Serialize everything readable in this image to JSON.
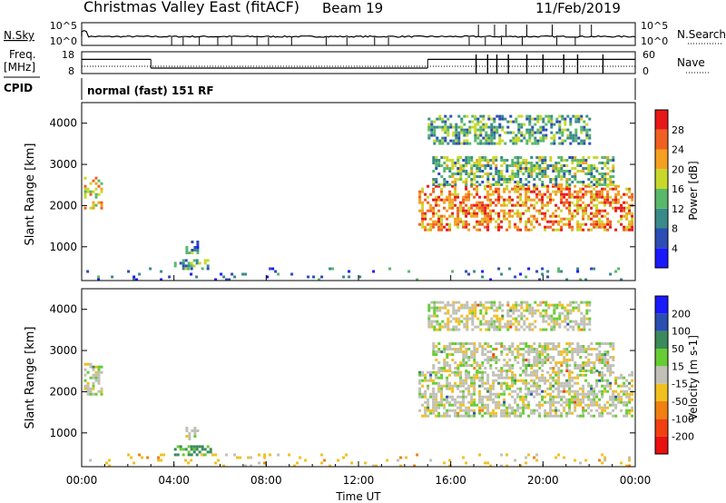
{
  "header": {
    "title": "Christmas Valley East (fitACF)",
    "beam": "Beam 19",
    "date": "11/Feb/2019"
  },
  "nsky_panel": {
    "left_label": "N.Sky",
    "right_label": "N.Search",
    "left_ticks": [
      "10^5",
      "10^0"
    ],
    "right_ticks": [
      "10^5",
      "10^0"
    ],
    "right_legend_style": "dotted"
  },
  "freq_panel": {
    "left_label_top": "Freq.",
    "left_label_unit": "[MHz]",
    "left_ticks": [
      "18",
      "8"
    ],
    "right_label": "Nave",
    "right_ticks": [
      "60",
      "0"
    ],
    "right_legend_style": "dotted",
    "freq_levels_mhz": [
      {
        "from_h": 0,
        "to_h": 3,
        "value": 14.5
      },
      {
        "from_h": 3,
        "to_h": 15,
        "value": 10.5
      },
      {
        "from_h": 15,
        "to_h": 24,
        "value": 14.5
      }
    ]
  },
  "cpid_panel": {
    "label": "CPID",
    "text": "normal (fast) 151 RF"
  },
  "chart_data": [
    {
      "type": "heatmap",
      "name": "power",
      "ylabel": "Slant Range [km]",
      "yticks": [
        "1000",
        "2000",
        "3000",
        "4000"
      ],
      "ylim": [
        180,
        4500
      ],
      "xlim": [
        0,
        24
      ],
      "colorbar": {
        "label": "Power [dB]",
        "ticks": [
          "4",
          "8",
          "12",
          "16",
          "20",
          "24",
          "28"
        ],
        "range": [
          0,
          32
        ],
        "colors": [
          "#1a1aff",
          "#2b4db5",
          "#3a8a8a",
          "#59b86a",
          "#c8d82a",
          "#f5a020",
          "#f06020",
          "#e81818"
        ]
      },
      "regions": [
        {
          "x": [
            0.1,
            0.9
          ],
          "y": [
            1950,
            2700
          ],
          "value": 20
        },
        {
          "x": [
            4.5,
            5.0
          ],
          "y": [
            850,
            1150
          ],
          "value": 10
        },
        {
          "x": [
            4.0,
            5.6
          ],
          "y": [
            450,
            700
          ],
          "value": 12
        },
        {
          "x": [
            14.6,
            23.9
          ],
          "y": [
            1400,
            2500
          ],
          "value": 24
        },
        {
          "x": [
            15.2,
            23.0
          ],
          "y": [
            2500,
            3200
          ],
          "value": 14
        },
        {
          "x": [
            15.0,
            22.0
          ],
          "y": [
            3500,
            4200
          ],
          "value": 12
        },
        {
          "x": [
            0.2,
            23.9
          ],
          "y": [
            180,
            500
          ],
          "value": 8
        }
      ]
    },
    {
      "type": "heatmap",
      "name": "velocity",
      "ylabel": "Slant Range [km]",
      "yticks": [
        "1000",
        "2000",
        "3000",
        "4000"
      ],
      "ylim": [
        180,
        4500
      ],
      "xlim": [
        0,
        24
      ],
      "xticks": [
        "00:00",
        "04:00",
        "08:00",
        "12:00",
        "16:00",
        "20:00",
        "00:00"
      ],
      "xlabel": "Time UT",
      "colorbar": {
        "label": "Velocity [m s-1]",
        "ticks": [
          "200",
          "100",
          "50",
          "15",
          "-15",
          "-50",
          "-100",
          "-200"
        ],
        "colors": [
          "#1a1aff",
          "#2a4fb0",
          "#3a8a5a",
          "#66cc33",
          "#c0c0b8",
          "#f0c020",
          "#f08010",
          "#f04010",
          "#e81010"
        ]
      },
      "regions": [
        {
          "x": [
            0.1,
            0.9
          ],
          "y": [
            1950,
            2700
          ],
          "value": 0
        },
        {
          "x": [
            4.5,
            5.0
          ],
          "y": [
            850,
            1150
          ],
          "value": 0
        },
        {
          "x": [
            4.0,
            5.6
          ],
          "y": [
            450,
            700
          ],
          "value": 60
        },
        {
          "x": [
            14.6,
            23.9
          ],
          "y": [
            1400,
            2500
          ],
          "value": 0
        },
        {
          "x": [
            15.2,
            23.0
          ],
          "y": [
            2500,
            3200
          ],
          "value": 0
        },
        {
          "x": [
            15.0,
            22.0
          ],
          "y": [
            3500,
            4200
          ],
          "value": 0
        },
        {
          "x": [
            0.2,
            23.9
          ],
          "y": [
            180,
            500
          ],
          "value": -30
        }
      ]
    }
  ]
}
